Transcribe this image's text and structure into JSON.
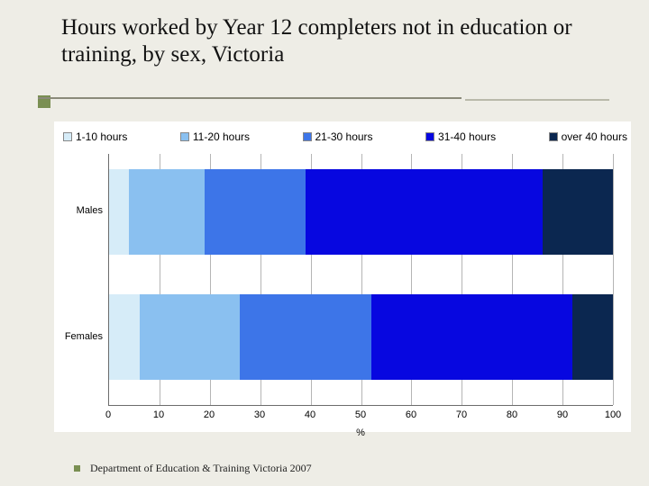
{
  "title": "Hours worked by Year 12 completers not in education or training, by sex, Victoria",
  "footer": "Department of Education & Training Victoria 2007",
  "chart": {
    "type": "stacked-horizontal-bar",
    "background_color": "#ffffff",
    "slide_background": "#eeede6",
    "series": [
      {
        "label": "1-10 hours",
        "color": "#d6ecf8"
      },
      {
        "label": "11-20 hours",
        "color": "#8ac0f0"
      },
      {
        "label": "21-30 hours",
        "color": "#3d75e8"
      },
      {
        "label": "31-40 hours",
        "color": "#0707e0"
      },
      {
        "label": "over 40 hours",
        "color": "#0b2750"
      }
    ],
    "categories": [
      "Males",
      "Females"
    ],
    "category_positions_pct": [
      23,
      73
    ],
    "bar_height_pct": 34,
    "values": {
      "Males": [
        4,
        15,
        20,
        47,
        14
      ],
      "Females": [
        6,
        20,
        26,
        40,
        8
      ]
    },
    "x": {
      "label": "%",
      "min": 0,
      "max": 100,
      "ticks": [
        0,
        10,
        20,
        30,
        40,
        50,
        60,
        70,
        80,
        90,
        100
      ],
      "tick_fontsize": 11
    },
    "y_fontsize": 11,
    "legend_fontsize": 12,
    "grid_color": "#b5b5b5",
    "axis_color": "#6c6c6c"
  }
}
